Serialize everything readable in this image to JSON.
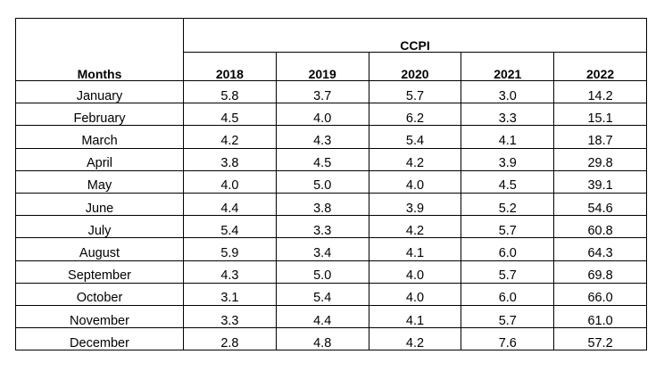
{
  "table": {
    "row_header_label": "Months",
    "group_header_label": "CCPI",
    "years": [
      "2018",
      "2019",
      "2020",
      "2021",
      "2022"
    ],
    "rows": [
      {
        "month": "January",
        "values": [
          "5.8",
          "3.7",
          "5.7",
          "3.0",
          "14.2"
        ]
      },
      {
        "month": "February",
        "values": [
          "4.5",
          "4.0",
          "6.2",
          "3.3",
          "15.1"
        ]
      },
      {
        "month": "March",
        "values": [
          "4.2",
          "4.3",
          "5.4",
          "4.1",
          "18.7"
        ]
      },
      {
        "month": "April",
        "values": [
          "3.8",
          "4.5",
          "4.2",
          "3.9",
          "29.8"
        ]
      },
      {
        "month": "May",
        "values": [
          "4.0",
          "5.0",
          "4.0",
          "4.5",
          "39.1"
        ]
      },
      {
        "month": "June",
        "values": [
          "4.4",
          "3.8",
          "3.9",
          "5.2",
          "54.6"
        ]
      },
      {
        "month": "July",
        "values": [
          "5.4",
          "3.3",
          "4.2",
          "5.7",
          "60.8"
        ]
      },
      {
        "month": "August",
        "values": [
          "5.9",
          "3.4",
          "4.1",
          "6.0",
          "64.3"
        ]
      },
      {
        "month": "September",
        "values": [
          "4.3",
          "5.0",
          "4.0",
          "5.7",
          "69.8"
        ]
      },
      {
        "month": "October",
        "values": [
          "3.1",
          "5.4",
          "4.0",
          "6.0",
          "66.0"
        ]
      },
      {
        "month": "November",
        "values": [
          "3.3",
          "4.4",
          "4.1",
          "5.7",
          "61.0"
        ]
      },
      {
        "month": "December",
        "values": [
          "2.8",
          "4.8",
          "4.2",
          "7.6",
          "57.2"
        ]
      }
    ]
  }
}
